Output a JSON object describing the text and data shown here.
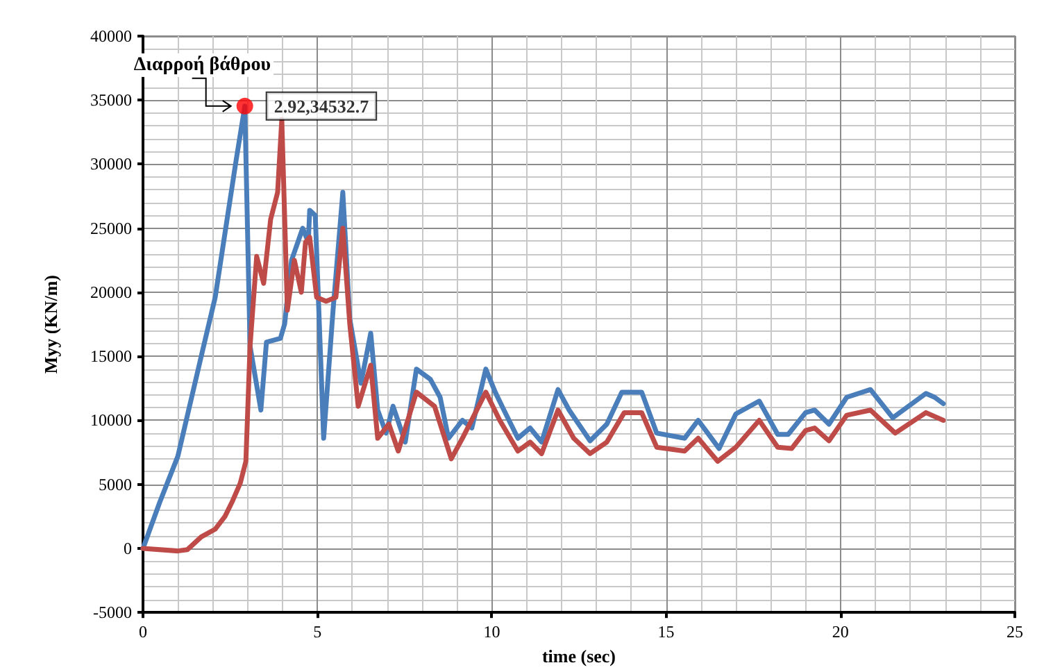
{
  "chart_data": {
    "type": "line",
    "xlabel": "time (sec)",
    "ylabel": "Myy (KN/m)",
    "xlim": [
      0,
      25
    ],
    "xticks": [
      0,
      5,
      10,
      15,
      20,
      25
    ],
    "ylim": [
      -5000,
      40000
    ],
    "yticks": [
      -5000,
      0,
      5000,
      10000,
      15000,
      20000,
      25000,
      30000,
      35000,
      40000
    ],
    "grid": true,
    "marker": "none",
    "line_style": "solid",
    "annotations": [
      {
        "text": "Διαρροή βάθρου",
        "x": 2.92,
        "y": 34532.7
      }
    ],
    "series": [
      {
        "color": "#4a7ebb",
        "x": [
          0,
          0.48,
          1.0,
          1.67,
          2.07,
          2.35,
          2.67,
          2.92,
          3.07,
          3.38,
          3.54,
          3.94,
          4.06,
          4.26,
          4.58,
          4.74,
          4.78,
          4.94,
          5.18,
          5.45,
          5.73,
          5.93,
          6.25,
          6.53,
          6.73,
          6.97,
          7.17,
          7.52,
          7.84,
          8.24,
          8.52,
          8.76,
          9.16,
          9.43,
          9.83,
          10.1,
          10.35,
          10.75,
          11.1,
          11.43,
          11.9,
          12.22,
          12.82,
          13.3,
          13.73,
          14.3,
          14.73,
          15.53,
          15.92,
          16.52,
          17.0,
          17.67,
          18.2,
          18.5,
          19.0,
          19.26,
          19.67,
          20.18,
          20.86,
          21.5,
          22.45,
          22.7,
          22.95
        ],
        "values": [
          0,
          3600,
          7200,
          15000,
          19600,
          24600,
          30300,
          34532.7,
          15800,
          10800,
          16100,
          16400,
          17500,
          22500,
          25000,
          23900,
          26400,
          26000,
          8600,
          18600,
          27800,
          17900,
          12900,
          16800,
          10800,
          9000,
          11100,
          8300,
          14000,
          13200,
          11800,
          8600,
          10000,
          9400,
          14000,
          12200,
          10800,
          8600,
          9400,
          8300,
          12400,
          10800,
          8400,
          9700,
          12200,
          12200,
          9000,
          8600,
          10000,
          7800,
          10500,
          11500,
          8900,
          8900,
          10600,
          10800,
          9700,
          11800,
          12400,
          10200,
          12100,
          11800,
          11300
        ]
      },
      {
        "color": "#be4b48",
        "x": [
          0,
          1.0,
          1.27,
          1.67,
          2.07,
          2.35,
          2.55,
          2.79,
          2.95,
          3.07,
          3.26,
          3.46,
          3.66,
          3.86,
          3.98,
          4.14,
          4.34,
          4.54,
          4.66,
          4.78,
          4.98,
          5.25,
          5.53,
          5.73,
          5.93,
          6.17,
          6.53,
          6.73,
          7.05,
          7.32,
          7.84,
          8.36,
          8.84,
          9.16,
          9.83,
          10.23,
          10.75,
          11.1,
          11.43,
          11.9,
          12.35,
          12.82,
          13.3,
          13.8,
          14.3,
          14.73,
          15.53,
          15.92,
          16.48,
          17.0,
          17.67,
          18.2,
          18.6,
          19.0,
          19.26,
          19.67,
          20.18,
          20.86,
          21.57,
          22.45,
          22.95
        ],
        "values": [
          0,
          -200,
          -100,
          900,
          1500,
          2500,
          3600,
          5100,
          6800,
          15800,
          22800,
          20700,
          25700,
          27800,
          33500,
          18600,
          22500,
          20000,
          23900,
          24300,
          19600,
          19300,
          19600,
          25000,
          17500,
          11100,
          14300,
          8600,
          9700,
          7600,
          12200,
          11100,
          7000,
          8600,
          12200,
          10000,
          7600,
          8300,
          7400,
          10800,
          8600,
          7400,
          8300,
          10600,
          10600,
          7900,
          7600,
          8600,
          6800,
          7900,
          10000,
          7900,
          7800,
          9200,
          9400,
          8400,
          10400,
          10800,
          9000,
          10600,
          10000
        ]
      },
      {
        "type": "scatter",
        "color": "#ff0000",
        "marker": "circle",
        "x": [
          2.92
        ],
        "values": [
          34532.7
        ],
        "value_labels": [
          "2.92,34532.7"
        ]
      }
    ]
  }
}
